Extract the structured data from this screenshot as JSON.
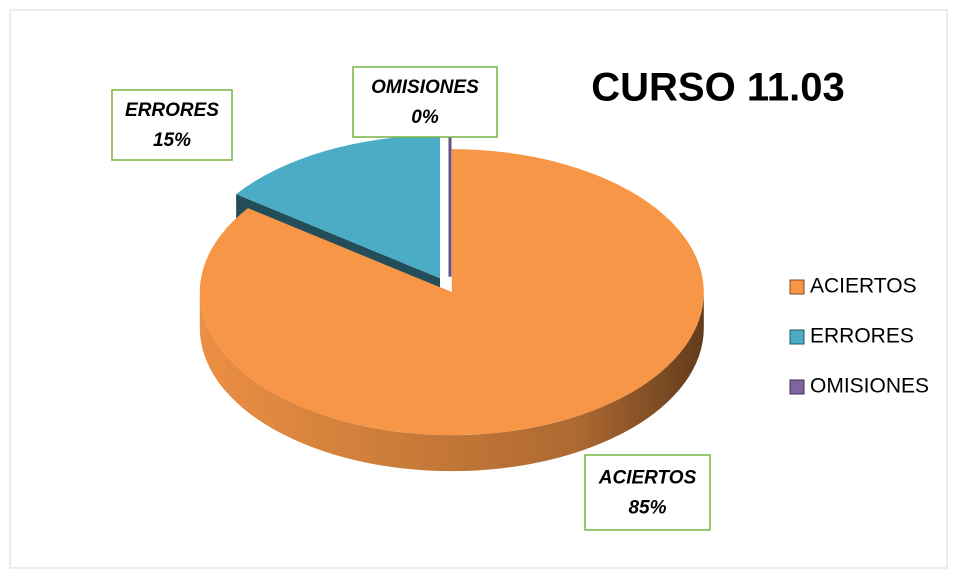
{
  "chart_data": {
    "type": "pie",
    "title": "CURSO 11.03",
    "categories": [
      "ACIERTOS",
      "ERRORES",
      "OMISIONES"
    ],
    "values": [
      85,
      15,
      0
    ],
    "value_labels": [
      "85%",
      "15%",
      "0%"
    ],
    "colors": [
      "#f79646",
      "#4bacc6",
      "#8064a2"
    ],
    "legend": "right"
  }
}
